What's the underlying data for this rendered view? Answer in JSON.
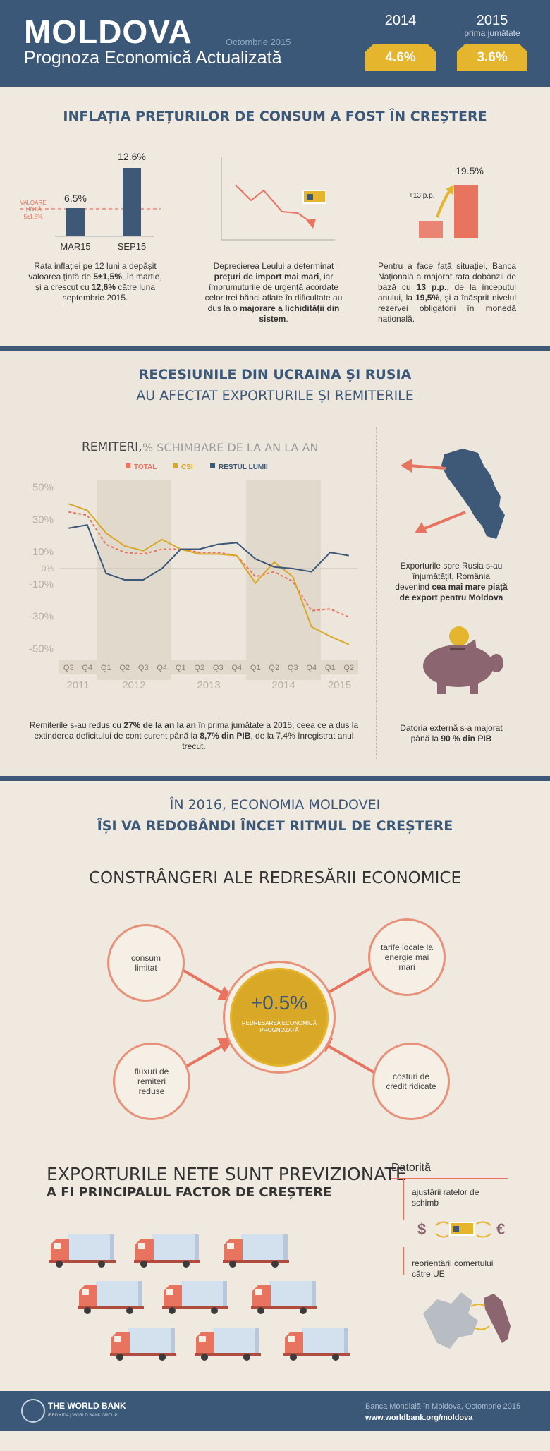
{
  "header": {
    "title": "MOLDOVA",
    "subtitle": "Prognoza Economică Actualizată",
    "date": "Octombrie 2015",
    "year1": "2014",
    "value1": "4.6%",
    "year2": "2015",
    "year2_sub": "prima jumătate",
    "value2": "3.6%"
  },
  "inflation": {
    "heading": "INFLAȚIA PREȚURILOR DE CONSUM A FOST ÎN CREȘTERE",
    "target_label": "VALOARE ȚINTĂ",
    "target_value": "5±1.5%",
    "bar1_value": "6.5%",
    "bar1_label": "MAR15",
    "bar2_value": "12.6%",
    "bar2_label": "SEP15",
    "text1_a": "Rata inflației pe 12 luni a depășit valoarea țintă de ",
    "text1_b": "5±1,5%",
    "text1_c": ", în martie, și a crescut cu ",
    "text1_d": "12,6%",
    "text1_e": " către luna septembrie 2015.",
    "text2_a": "Deprecierea Leului a determinat ",
    "text2_b": "prețuri de import mai mari",
    "text2_c": ", iar împrumuturile de urgență acordate celor trei bănci aflate în dificultate au dus la o ",
    "text2_d": "majorare a lichidității din sistem",
    "text2_e": ".",
    "pp_label": "+13 p.p.",
    "rate_value": "19.5%",
    "text3_a": "Pentru a face față situației, Banca Națională a majorat rata dobânzii de bază cu ",
    "text3_b": "13 p.p.",
    "text3_c": ", de la începutul anului, la ",
    "text3_d": "19,5%",
    "text3_e": ", și a înăsprit nivelul rezervei obligatorii în monedă națională."
  },
  "recession": {
    "heading1": "RECESIUNILE DIN UCRAINA ȘI RUSIA",
    "heading2": "AU AFECTAT EXPORTURILE ȘI REMITERILE",
    "remit_text_a": "Remiterile s-au redus cu ",
    "remit_text_b": "27% de la an la an",
    "remit_text_c": " în prima jumătate a 2015, ceea ce a dus la extinderea deficitului de cont curent până la ",
    "remit_text_d": "8,7% din PIB",
    "remit_text_e": ", de la 7,4% înregistrat anul trecut.",
    "export_text_a": "Exporturile spre Rusia s-au înjumătățit, România devenind ",
    "export_text_b": "cea mai mare piață de export pentru Moldova",
    "debt_text_a": "Datoria externă s-a majorat până la ",
    "debt_text_b": "90 % din PIB"
  },
  "chart_data": {
    "type": "line",
    "title": "REMITERI,",
    "subtitle": "% SCHIMBARE DE LA AN LA AN",
    "quarters": [
      "Q3",
      "Q4",
      "Q1",
      "Q2",
      "Q3",
      "Q4",
      "Q1",
      "Q2",
      "Q3",
      "Q4",
      "Q1",
      "Q2",
      "Q3",
      "Q4",
      "Q1",
      "Q2"
    ],
    "years": [
      "2011",
      "2012",
      "2013",
      "2014",
      "2015"
    ],
    "y_ticks": [
      {
        "v": 50,
        "label": "50%"
      },
      {
        "v": 30,
        "label": "30%"
      },
      {
        "v": 10,
        "label": "10%"
      },
      {
        "v": 0,
        "label": "0%"
      },
      {
        "v": -10,
        "label": "-10%"
      },
      {
        "v": -30,
        "label": "-30%"
      },
      {
        "v": -50,
        "label": "-50%"
      }
    ],
    "ylim": [
      -55,
      55
    ],
    "series": [
      {
        "name": "TOTAL",
        "color": "#e8735f",
        "dashed": true,
        "values": [
          35,
          33,
          15,
          10,
          9,
          12,
          12,
          10,
          10,
          8,
          -5,
          -2,
          -8,
          -26,
          -25,
          -30
        ]
      },
      {
        "name": "CSI",
        "color": "#d8a826",
        "dashed": false,
        "values": [
          40,
          36,
          22,
          14,
          11,
          18,
          12,
          9,
          9,
          8,
          -9,
          4,
          -5,
          -36,
          -42,
          -47
        ]
      },
      {
        "name": "RESTUL LUMII",
        "color": "#3b5879",
        "dashed": false,
        "values": [
          25,
          27,
          -3,
          -7,
          -7,
          0,
          12,
          12,
          15,
          16,
          6,
          1,
          0,
          -2,
          10,
          8
        ]
      }
    ]
  },
  "growth": {
    "line1": "ÎN 2016, ECONOMIA MOLDOVEI",
    "line2": "ÎȘI VA REDOBÂNDI ÎNCET RITMUL DE CREȘTERE",
    "constraints_title": "CONSTRÂNGERI ALE REDRESĂRII ECONOMICE",
    "center_value": "+0.5%",
    "center_label": "REDRESAREA ECONOMICĂ PROGNOZATĂ",
    "c1": "consum limitat",
    "c2": "tarife locale la energie mai mari",
    "c3": "fluxuri de remiteri reduse",
    "c4": "costuri de credit ridicate"
  },
  "exports": {
    "heading1": "EXPORTURILE NETE SUNT PREVIZIONATE",
    "heading2": "A FI PRINCIPALUL FACTOR DE CREȘTERE",
    "due_title": "Datorită",
    "due1": "ajustării ratelor de schimb",
    "due2": "reorientării comerțului către UE",
    "dollar": "$",
    "euro": "€"
  },
  "footer": {
    "org": "THE WORLD BANK",
    "org_sub": "IBRD • IDA | WORLD BANK GROUP",
    "line1": "Banca Mondială în Moldova, Octombrie 2015",
    "line2": "www.worldbank.org/moldova"
  },
  "legend_title": "",
  "colors": {
    "navy": "#3b5879",
    "gold": "#e5b52e",
    "coral": "#e8735f"
  }
}
